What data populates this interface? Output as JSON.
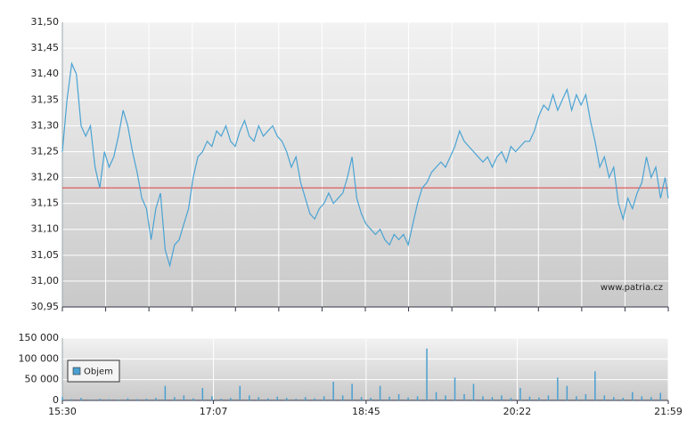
{
  "chart_data": [
    {
      "type": "line",
      "annotation": "www.patria.cz",
      "x": [
        930,
        933,
        936,
        939,
        942,
        945,
        948,
        951,
        954,
        957,
        960,
        963,
        966,
        969,
        972,
        975,
        978,
        981,
        984,
        987,
        990,
        993,
        996,
        999,
        1002,
        1005,
        1008,
        1011,
        1014,
        1017,
        1020,
        1023,
        1026,
        1029,
        1032,
        1035,
        1038,
        1041,
        1044,
        1047,
        1050,
        1053,
        1056,
        1059,
        1062,
        1065,
        1068,
        1071,
        1074,
        1077,
        1080,
        1083,
        1086,
        1089,
        1092,
        1095,
        1098,
        1101,
        1104,
        1107,
        1110,
        1113,
        1116,
        1119,
        1122,
        1125,
        1128,
        1131,
        1134,
        1137,
        1140,
        1143,
        1146,
        1149,
        1152,
        1155,
        1158,
        1161,
        1164,
        1167,
        1170,
        1173,
        1176,
        1179,
        1182,
        1185,
        1188,
        1191,
        1194,
        1197,
        1200,
        1203,
        1206,
        1209,
        1212,
        1215,
        1218,
        1221,
        1224,
        1227,
        1230,
        1233,
        1236,
        1239,
        1242,
        1245,
        1248,
        1251,
        1254,
        1257,
        1260,
        1263,
        1266,
        1269,
        1272,
        1275,
        1278,
        1281,
        1284,
        1287,
        1290,
        1293,
        1296,
        1299,
        1302,
        1305,
        1308,
        1311,
        1314,
        1317,
        1319
      ],
      "series": [
        {
          "color": "#4aa3d3",
          "values": [
            31.25,
            31.35,
            31.42,
            31.4,
            31.3,
            31.28,
            31.3,
            31.22,
            31.18,
            31.25,
            31.22,
            31.24,
            31.28,
            31.33,
            31.3,
            31.25,
            31.21,
            31.16,
            31.14,
            31.08,
            31.14,
            31.17,
            31.06,
            31.03,
            31.07,
            31.08,
            31.11,
            31.14,
            31.2,
            31.24,
            31.25,
            31.27,
            31.26,
            31.29,
            31.28,
            31.3,
            31.27,
            31.26,
            31.29,
            31.31,
            31.28,
            31.27,
            31.3,
            31.28,
            31.29,
            31.3,
            31.28,
            31.27,
            31.25,
            31.22,
            31.24,
            31.19,
            31.16,
            31.13,
            31.12,
            31.14,
            31.15,
            31.17,
            31.15,
            31.16,
            31.17,
            31.2,
            31.24,
            31.16,
            31.13,
            31.11,
            31.1,
            31.09,
            31.1,
            31.08,
            31.07,
            31.09,
            31.08,
            31.09,
            31.07,
            31.11,
            31.15,
            31.18,
            31.19,
            31.21,
            31.22,
            31.23,
            31.22,
            31.24,
            31.26,
            31.29,
            31.27,
            31.26,
            31.25,
            31.24,
            31.23,
            31.24,
            31.22,
            31.24,
            31.25,
            31.23,
            31.26,
            31.25,
            31.26,
            31.27,
            31.27,
            31.29,
            31.32,
            31.34,
            31.33,
            31.36,
            31.33,
            31.35,
            31.37,
            31.33,
            31.36,
            31.34,
            31.36,
            31.31,
            31.27,
            31.22,
            31.24,
            31.2,
            31.22,
            31.15,
            31.12,
            31.16,
            31.14,
            31.17,
            31.19,
            31.24,
            31.2,
            31.22,
            31.16,
            31.2,
            31.16
          ]
        }
      ],
      "ref_line": 31.18,
      "ref_color": "#e03b3b",
      "xlim": [
        930,
        1319
      ],
      "ylim": [
        30.95,
        31.5
      ],
      "yticks": [
        {
          "value": 30.95,
          "label": "30,95"
        },
        {
          "value": 31.0,
          "label": "31,00"
        },
        {
          "value": 31.05,
          "label": "31,05"
        },
        {
          "value": 31.1,
          "label": "31,10"
        },
        {
          "value": 31.15,
          "label": "31,15"
        },
        {
          "value": 31.2,
          "label": "31,20"
        },
        {
          "value": 31.25,
          "label": "31,25"
        },
        {
          "value": 31.3,
          "label": "31,30"
        },
        {
          "value": 31.35,
          "label": "31,35"
        },
        {
          "value": 31.4,
          "label": "31,40"
        },
        {
          "value": 31.45,
          "label": "31,45"
        },
        {
          "value": 31.5,
          "label": "31,50"
        }
      ],
      "grid": true
    },
    {
      "type": "bar",
      "legend": "upper left",
      "x": [
        930,
        936,
        942,
        948,
        954,
        960,
        966,
        972,
        978,
        984,
        990,
        996,
        1002,
        1008,
        1014,
        1020,
        1026,
        1032,
        1038,
        1044,
        1050,
        1056,
        1062,
        1068,
        1074,
        1080,
        1086,
        1092,
        1098,
        1104,
        1110,
        1116,
        1122,
        1128,
        1134,
        1140,
        1146,
        1152,
        1158,
        1164,
        1170,
        1176,
        1182,
        1188,
        1194,
        1200,
        1206,
        1212,
        1218,
        1224,
        1230,
        1236,
        1242,
        1248,
        1254,
        1260,
        1266,
        1272,
        1278,
        1284,
        1290,
        1296,
        1302,
        1308,
        1314
      ],
      "series": [
        {
          "name": "Objem",
          "color": "#4a9fd0",
          "values": [
            8000,
            3000,
            6000,
            2000,
            4000,
            3000,
            2000,
            5000,
            3000,
            4000,
            6000,
            35000,
            8000,
            12000,
            5000,
            30000,
            10000,
            4000,
            6000,
            35000,
            12000,
            8000,
            5000,
            9000,
            6000,
            4000,
            8000,
            5000,
            10000,
            45000,
            12000,
            40000,
            8000,
            6000,
            35000,
            9000,
            15000,
            7000,
            10000,
            125000,
            20000,
            12000,
            55000,
            15000,
            40000,
            10000,
            8000,
            12000,
            6000,
            30000,
            9000,
            7000,
            12000,
            55000,
            35000,
            10000,
            15000,
            70000,
            12000,
            8000,
            6000,
            20000,
            10000,
            8000,
            18000
          ]
        }
      ],
      "xlim": [
        930,
        1319
      ],
      "xticks": [
        {
          "value": 930,
          "label": "15:30"
        },
        {
          "value": 1027,
          "label": "17:07"
        },
        {
          "value": 1125,
          "label": "18:45"
        },
        {
          "value": 1222,
          "label": "20:22"
        },
        {
          "value": 1319,
          "label": "21:59"
        }
      ],
      "ylim": [
        0,
        150000
      ],
      "yticks": [
        {
          "value": 0,
          "label": "0"
        },
        {
          "value": 50000,
          "label": "50 000"
        },
        {
          "value": 100000,
          "label": "100 000"
        },
        {
          "value": 150000,
          "label": "150 000"
        }
      ],
      "grid": true
    }
  ]
}
